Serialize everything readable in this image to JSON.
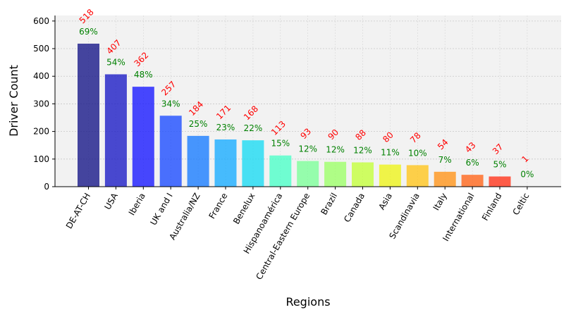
{
  "chart_data": {
    "type": "bar",
    "title": "",
    "xlabel": "Regions",
    "ylabel": "Driver Count",
    "ylim": [
      0,
      620
    ],
    "yticks": [
      0,
      100,
      200,
      300,
      400,
      500,
      600
    ],
    "grid": true,
    "categories": [
      "DE-AT-CH",
      "USA",
      "Iberia",
      "UK and I",
      "Australia/NZ",
      "France",
      "Benelux",
      "Hispanoamérica",
      "Central-Eastern Europe",
      "Brazil",
      "Canada",
      "Asia",
      "Scandinavia",
      "Italy",
      "International",
      "Finland",
      "Celtic"
    ],
    "values": [
      518,
      407,
      362,
      257,
      184,
      171,
      168,
      113,
      93,
      90,
      88,
      80,
      78,
      54,
      43,
      37,
      1
    ],
    "percent_labels": [
      "69%",
      "54%",
      "48%",
      "34%",
      "25%",
      "23%",
      "22%",
      "15%",
      "12%",
      "12%",
      "12%",
      "11%",
      "10%",
      "7%",
      "6%",
      "5%",
      "0%"
    ],
    "bar_colors": [
      "#181888",
      "#1d1dc6",
      "#1a1aff",
      "#1e4dff",
      "#1a7dff",
      "#1aadff",
      "#1ddbf2",
      "#4dffc8",
      "#7dff9a",
      "#9dff6a",
      "#c4ff3d",
      "#eef41d",
      "#ffc61e",
      "#ff951a",
      "#ff661b",
      "#ff351b",
      "#d80909"
    ],
    "count_label_color": "#ff0000",
    "percent_label_color": "#008000",
    "plot_background": "#f2f2f2"
  }
}
